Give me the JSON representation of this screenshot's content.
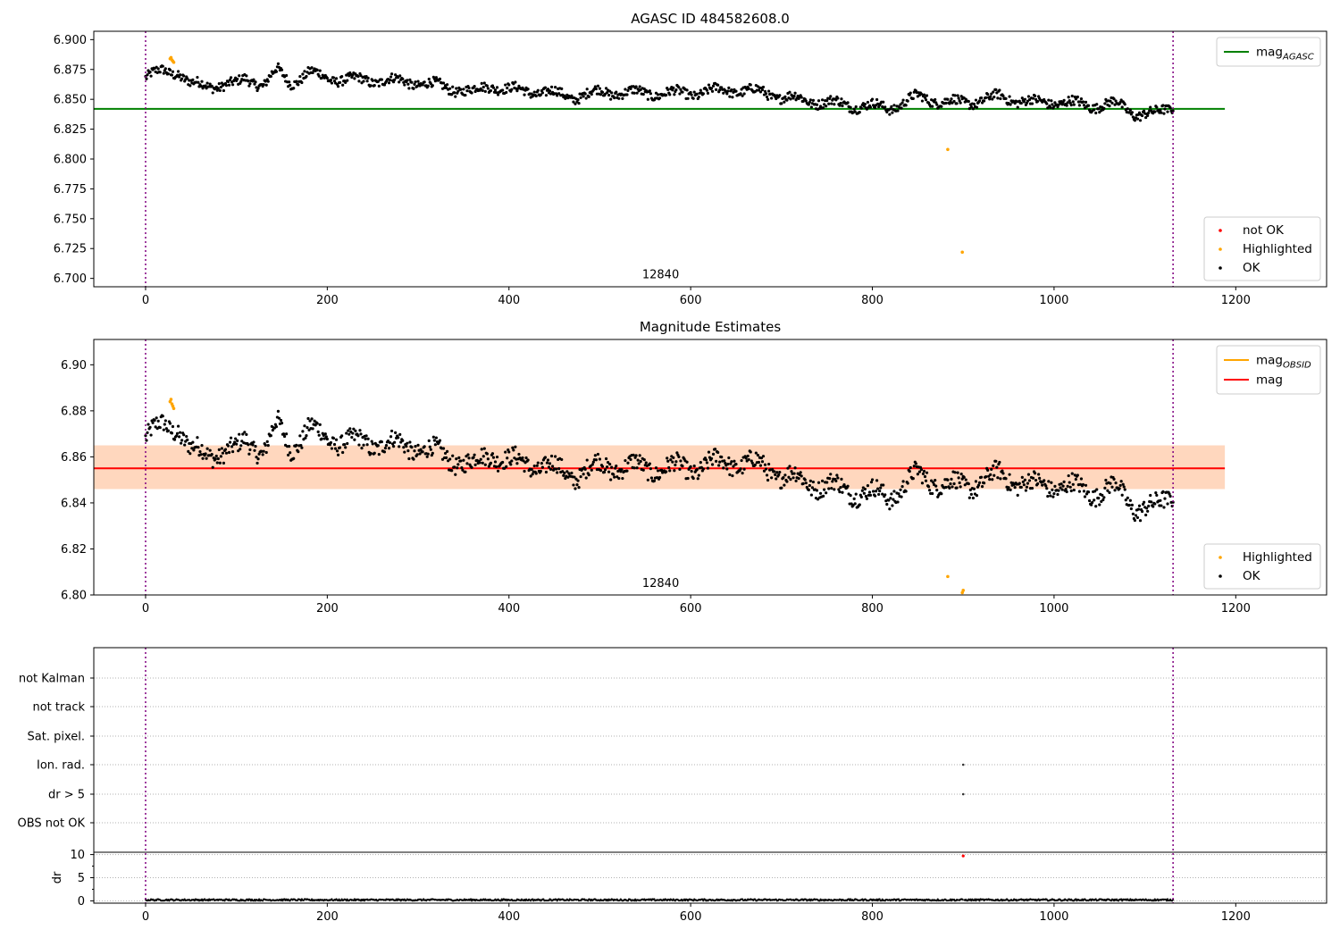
{
  "chart_data": [
    {
      "type": "scatter",
      "title": "AGASC ID 484582608.0",
      "xlim": [
        -57,
        1300
      ],
      "ylim": [
        6.693,
        6.907
      ],
      "xticks": [
        "0",
        "200",
        "400",
        "600",
        "800",
        "1000",
        "1200"
      ],
      "yticks": [
        "6.700",
        "6.725",
        "6.750",
        "6.775",
        "6.800",
        "6.825",
        "6.850",
        "6.875",
        "6.900"
      ],
      "vlines": [
        0,
        1131
      ],
      "hline": {
        "value": 6.842,
        "x_range": [
          -57,
          1188
        ],
        "color": "#008000"
      },
      "annotation": {
        "text": "12840",
        "x": 565,
        "y": 6.697
      },
      "legend_lines": [
        {
          "label": "mag",
          "sub": "AGASC",
          "color": "#008000"
        }
      ],
      "legend_points": [
        {
          "label": "not OK",
          "color": "#ff0000"
        },
        {
          "label": "Highlighted",
          "color": "#ffa500"
        },
        {
          "label": "OK",
          "color": "#000000"
        }
      ],
      "trend": [
        [
          0,
          6.868
        ],
        [
          20,
          6.874
        ],
        [
          35,
          6.873
        ],
        [
          50,
          6.862
        ],
        [
          80,
          6.862
        ],
        [
          100,
          6.862
        ],
        [
          110,
          6.868
        ],
        [
          130,
          6.862
        ],
        [
          145,
          6.874
        ],
        [
          160,
          6.864
        ],
        [
          180,
          6.872
        ],
        [
          200,
          6.868
        ],
        [
          230,
          6.866
        ],
        [
          260,
          6.866
        ],
        [
          300,
          6.864
        ],
        [
          340,
          6.859
        ],
        [
          360,
          6.856
        ],
        [
          380,
          6.862
        ],
        [
          400,
          6.858
        ],
        [
          440,
          6.856
        ],
        [
          470,
          6.852
        ],
        [
          500,
          6.856
        ],
        [
          560,
          6.855
        ],
        [
          600,
          6.855
        ],
        [
          640,
          6.858
        ],
        [
          680,
          6.856
        ],
        [
          700,
          6.852
        ],
        [
          740,
          6.848
        ],
        [
          780,
          6.845
        ],
        [
          820,
          6.843
        ],
        [
          850,
          6.852
        ],
        [
          880,
          6.848
        ],
        [
          900,
          6.847
        ],
        [
          940,
          6.852
        ],
        [
          980,
          6.847
        ],
        [
          1000,
          6.848
        ],
        [
          1040,
          6.845
        ],
        [
          1070,
          6.846
        ],
        [
          1090,
          6.838
        ],
        [
          1110,
          6.837
        ],
        [
          1131,
          6.845
        ]
      ],
      "highlighted": [
        [
          27,
          6.884
        ],
        [
          28,
          6.885
        ],
        [
          29,
          6.883
        ],
        [
          30,
          6.882
        ],
        [
          31,
          6.881
        ],
        [
          883,
          6.808
        ],
        [
          899,
          6.722
        ]
      ],
      "not_ok": []
    },
    {
      "type": "scatter",
      "title": "Magnitude Estimates",
      "xlim": [
        -57,
        1300
      ],
      "ylim": [
        6.8,
        6.911
      ],
      "xticks": [
        "0",
        "200",
        "400",
        "600",
        "800",
        "1000",
        "1200"
      ],
      "yticks": [
        "6.80",
        "6.82",
        "6.84",
        "6.86",
        "6.88",
        "6.90"
      ],
      "vlines": [
        0,
        1131
      ],
      "hline": {
        "value": 6.855,
        "x_range": [
          -57,
          1188
        ],
        "color": "#ff0000"
      },
      "band": {
        "low": 6.846,
        "high": 6.865,
        "x_range": [
          -57,
          1188
        ]
      },
      "annotation": {
        "text": "12840",
        "x": 565,
        "y": 6.802
      },
      "legend_lines": [
        {
          "label": "mag",
          "sub": "OBSID",
          "color": "#ffa500"
        },
        {
          "label": "mag",
          "sub": "",
          "color": "#ff0000"
        }
      ],
      "legend_points": [
        {
          "label": "Highlighted",
          "color": "#ffa500"
        },
        {
          "label": "OK",
          "color": "#000000"
        }
      ],
      "trend": [
        [
          0,
          6.868
        ],
        [
          20,
          6.874
        ],
        [
          35,
          6.873
        ],
        [
          50,
          6.862
        ],
        [
          80,
          6.862
        ],
        [
          100,
          6.862
        ],
        [
          110,
          6.868
        ],
        [
          130,
          6.862
        ],
        [
          145,
          6.874
        ],
        [
          160,
          6.864
        ],
        [
          180,
          6.872
        ],
        [
          200,
          6.868
        ],
        [
          230,
          6.866
        ],
        [
          260,
          6.866
        ],
        [
          300,
          6.864
        ],
        [
          340,
          6.859
        ],
        [
          360,
          6.856
        ],
        [
          380,
          6.862
        ],
        [
          400,
          6.858
        ],
        [
          440,
          6.856
        ],
        [
          470,
          6.852
        ],
        [
          500,
          6.856
        ],
        [
          560,
          6.855
        ],
        [
          600,
          6.855
        ],
        [
          640,
          6.858
        ],
        [
          680,
          6.856
        ],
        [
          700,
          6.852
        ],
        [
          740,
          6.848
        ],
        [
          780,
          6.845
        ],
        [
          820,
          6.843
        ],
        [
          850,
          6.852
        ],
        [
          880,
          6.848
        ],
        [
          900,
          6.847
        ],
        [
          940,
          6.852
        ],
        [
          980,
          6.847
        ],
        [
          1000,
          6.848
        ],
        [
          1040,
          6.845
        ],
        [
          1070,
          6.846
        ],
        [
          1090,
          6.838
        ],
        [
          1110,
          6.837
        ],
        [
          1131,
          6.845
        ]
      ],
      "highlighted": [
        [
          27,
          6.884
        ],
        [
          28,
          6.885
        ],
        [
          29,
          6.883
        ],
        [
          30,
          6.882
        ],
        [
          31,
          6.881
        ],
        [
          883,
          6.808
        ],
        [
          899,
          6.801
        ],
        [
          900,
          6.802
        ]
      ],
      "not_ok": []
    },
    {
      "type": "scatter",
      "title": "",
      "xlim": [
        -57,
        1300
      ],
      "xticks": [
        "0",
        "200",
        "400",
        "600",
        "800",
        "1000",
        "1200"
      ],
      "category_labels": [
        "not Kalman",
        "not track",
        "Sat. pixel.",
        "Ion. rad.",
        "dr > 5",
        "OBS not OK"
      ],
      "flag_points": [
        {
          "category": "Ion. rad.",
          "x": 900
        },
        {
          "category": "dr > 5",
          "x": 900
        }
      ],
      "vlines": [
        0,
        1131
      ],
      "dr": {
        "ylabel": "dr",
        "ylim": [
          -0.5,
          10.5
        ],
        "yticks": [
          "0",
          "5",
          "10"
        ],
        "values_approx": 0.2,
        "outlier": {
          "x": 900,
          "y": 9.7
        }
      }
    }
  ]
}
